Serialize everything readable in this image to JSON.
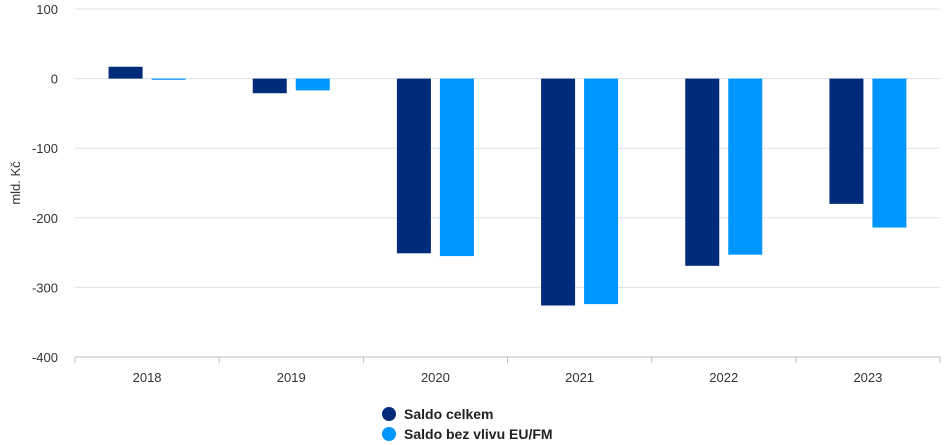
{
  "chart_data": {
    "type": "bar",
    "categories": [
      "2018",
      "2019",
      "2020",
      "2021",
      "2022",
      "2023"
    ],
    "series": [
      {
        "name": "Saldo celkem",
        "color": "#002a7a",
        "values": [
          17,
          -21,
          -251,
          -326,
          -269,
          -180
        ]
      },
      {
        "name": "Saldo bez vlivu EU/FM",
        "color": "#0096ff",
        "values": [
          -1,
          -17,
          -255,
          -324,
          -253,
          -214
        ]
      }
    ],
    "ylabel": "mld. Kč",
    "xlabel": "",
    "ylim": [
      -400,
      100
    ],
    "yticks": [
      100,
      0,
      -100,
      -200,
      -300,
      -400
    ],
    "grid": true,
    "legend_position": "bottom-center"
  }
}
